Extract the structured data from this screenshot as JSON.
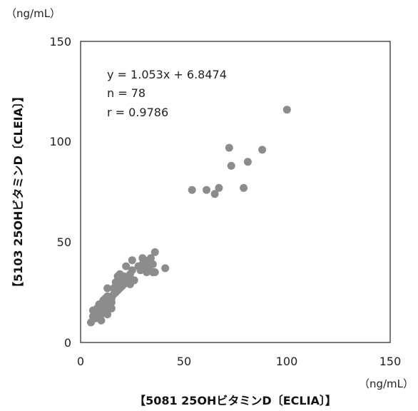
{
  "chart_data": {
    "type": "scatter",
    "title": "",
    "xlabel": "【5081  25OHビタミンD〔ECLIA〕】",
    "ylabel": "【5103  25OHビタミンD〔CLEIA〕】",
    "x_unit": "（ng/mL）",
    "y_unit": "（ng/mL）",
    "xlim": [
      0,
      150
    ],
    "ylim": [
      0,
      150
    ],
    "x_ticks": [
      "0",
      "50",
      "100",
      "150"
    ],
    "y_ticks": [
      "0",
      "50",
      "100",
      "150"
    ],
    "grid": false,
    "legend": "none",
    "marker_color": "#8c8c8c",
    "annotations": [
      "y = 1.053x + 6.8474",
      "n = 78",
      "r = 0.9786"
    ],
    "series": [
      {
        "points": [
          [
            5,
            10
          ],
          [
            6,
            13
          ],
          [
            6,
            16
          ],
          [
            7,
            12
          ],
          [
            7,
            15
          ],
          [
            8,
            14
          ],
          [
            8,
            17
          ],
          [
            9,
            12
          ],
          [
            9,
            16
          ],
          [
            9,
            19
          ],
          [
            10,
            11
          ],
          [
            10,
            14
          ],
          [
            10,
            17
          ],
          [
            11,
            15
          ],
          [
            11,
            18
          ],
          [
            11,
            21
          ],
          [
            12,
            16
          ],
          [
            12,
            19
          ],
          [
            12,
            22
          ],
          [
            13,
            14
          ],
          [
            13,
            17
          ],
          [
            13,
            20
          ],
          [
            13,
            23
          ],
          [
            13,
            27
          ],
          [
            14,
            18
          ],
          [
            14,
            21
          ],
          [
            15,
            17
          ],
          [
            15,
            20
          ],
          [
            15,
            22
          ],
          [
            16,
            24
          ],
          [
            16,
            27
          ],
          [
            17,
            25
          ],
          [
            17,
            28
          ],
          [
            17,
            30
          ],
          [
            18,
            26
          ],
          [
            18,
            29
          ],
          [
            18,
            33
          ],
          [
            19,
            27
          ],
          [
            19,
            31
          ],
          [
            19,
            34
          ],
          [
            20,
            28
          ],
          [
            20,
            32
          ],
          [
            21,
            29
          ],
          [
            21,
            33
          ],
          [
            22,
            30
          ],
          [
            22,
            38
          ],
          [
            23,
            32
          ],
          [
            24,
            34
          ],
          [
            25,
            36
          ],
          [
            25,
            41
          ],
          [
            26,
            31
          ],
          [
            28,
            38
          ],
          [
            29,
            36
          ],
          [
            30,
            39
          ],
          [
            30,
            42
          ],
          [
            31,
            37
          ],
          [
            31,
            41
          ],
          [
            32,
            35
          ],
          [
            32,
            40
          ],
          [
            33,
            36
          ],
          [
            33,
            38
          ],
          [
            34,
            42
          ],
          [
            35,
            35
          ],
          [
            35,
            39
          ],
          [
            36,
            45
          ],
          [
            36,
            35
          ],
          [
            41,
            37
          ],
          [
            54,
            76
          ],
          [
            61,
            76
          ],
          [
            65,
            74
          ],
          [
            67,
            77
          ],
          [
            72,
            97
          ],
          [
            73,
            88
          ],
          [
            79,
            77
          ],
          [
            81,
            90
          ],
          [
            88,
            96
          ],
          [
            100,
            116
          ],
          [
            24,
            29
          ]
        ]
      }
    ]
  }
}
